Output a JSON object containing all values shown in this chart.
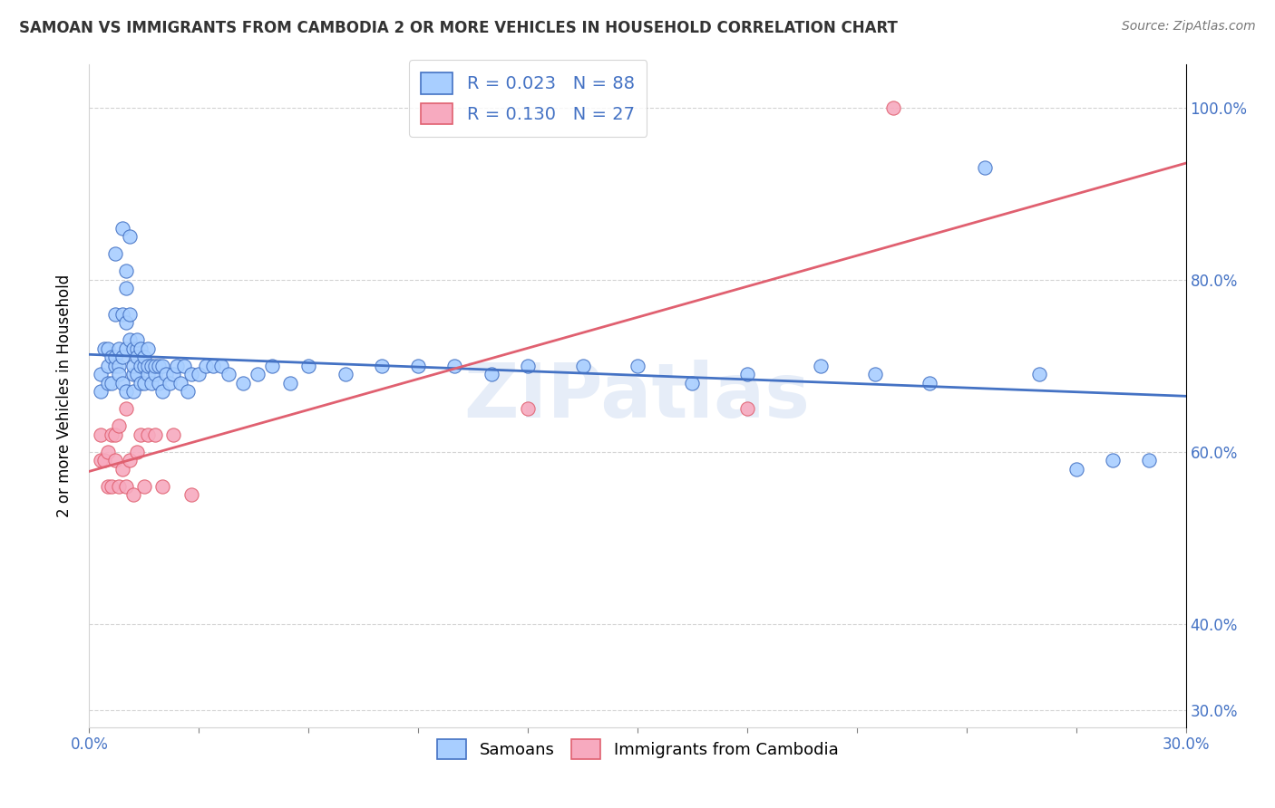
{
  "title": "SAMOAN VS IMMIGRANTS FROM CAMBODIA 2 OR MORE VEHICLES IN HOUSEHOLD CORRELATION CHART",
  "source_text": "Source: ZipAtlas.com",
  "ylabel": "2 or more Vehicles in Household",
  "y_tick_positions": [
    0.3,
    0.4,
    0.6,
    0.8,
    1.0
  ],
  "y_tick_labels": [
    "30.0%",
    "40.0%",
    "60.0%",
    "80.0%",
    "100.0%"
  ],
  "xlim": [
    0.0,
    0.3
  ],
  "ylim": [
    0.28,
    1.05
  ],
  "legend_r1": "0.023",
  "legend_n1": "88",
  "legend_r2": "0.130",
  "legend_n2": "27",
  "color_blue": "#A8CEFF",
  "color_pink": "#F7AABF",
  "trendline_blue": "#4472C4",
  "trendline_pink": "#E06070",
  "samoans_x": [
    0.003,
    0.003,
    0.004,
    0.005,
    0.005,
    0.005,
    0.006,
    0.006,
    0.007,
    0.007,
    0.007,
    0.007,
    0.008,
    0.008,
    0.008,
    0.009,
    0.009,
    0.009,
    0.009,
    0.01,
    0.01,
    0.01,
    0.01,
    0.01,
    0.011,
    0.011,
    0.011,
    0.012,
    0.012,
    0.012,
    0.012,
    0.013,
    0.013,
    0.013,
    0.013,
    0.014,
    0.014,
    0.014,
    0.015,
    0.015,
    0.015,
    0.016,
    0.016,
    0.016,
    0.017,
    0.017,
    0.018,
    0.018,
    0.019,
    0.019,
    0.02,
    0.02,
    0.021,
    0.022,
    0.023,
    0.024,
    0.025,
    0.026,
    0.027,
    0.028,
    0.03,
    0.032,
    0.034,
    0.036,
    0.038,
    0.042,
    0.046,
    0.05,
    0.055,
    0.06,
    0.07,
    0.08,
    0.09,
    0.1,
    0.11,
    0.12,
    0.135,
    0.15,
    0.165,
    0.18,
    0.2,
    0.215,
    0.23,
    0.245,
    0.26,
    0.27,
    0.28,
    0.29
  ],
  "samoans_y": [
    0.67,
    0.69,
    0.72,
    0.68,
    0.7,
    0.72,
    0.71,
    0.68,
    0.7,
    0.71,
    0.76,
    0.83,
    0.72,
    0.7,
    0.69,
    0.68,
    0.71,
    0.76,
    0.86,
    0.67,
    0.72,
    0.79,
    0.75,
    0.81,
    0.85,
    0.76,
    0.73,
    0.69,
    0.7,
    0.72,
    0.67,
    0.72,
    0.71,
    0.73,
    0.69,
    0.68,
    0.72,
    0.7,
    0.7,
    0.68,
    0.71,
    0.69,
    0.7,
    0.72,
    0.7,
    0.68,
    0.69,
    0.7,
    0.7,
    0.68,
    0.7,
    0.67,
    0.69,
    0.68,
    0.69,
    0.7,
    0.68,
    0.7,
    0.67,
    0.69,
    0.69,
    0.7,
    0.7,
    0.7,
    0.69,
    0.68,
    0.69,
    0.7,
    0.68,
    0.7,
    0.69,
    0.7,
    0.7,
    0.7,
    0.69,
    0.7,
    0.7,
    0.7,
    0.68,
    0.69,
    0.7,
    0.69,
    0.68,
    0.93,
    0.69,
    0.58,
    0.59,
    0.59
  ],
  "cambodia_x": [
    0.003,
    0.003,
    0.004,
    0.005,
    0.005,
    0.006,
    0.006,
    0.007,
    0.007,
    0.008,
    0.008,
    0.009,
    0.01,
    0.01,
    0.011,
    0.012,
    0.013,
    0.014,
    0.015,
    0.016,
    0.018,
    0.02,
    0.023,
    0.028,
    0.12,
    0.18,
    0.22
  ],
  "cambodia_y": [
    0.59,
    0.62,
    0.59,
    0.6,
    0.56,
    0.62,
    0.56,
    0.59,
    0.62,
    0.63,
    0.56,
    0.58,
    0.65,
    0.56,
    0.59,
    0.55,
    0.6,
    0.62,
    0.56,
    0.62,
    0.62,
    0.56,
    0.62,
    0.55,
    0.65,
    0.65,
    1.0
  ]
}
